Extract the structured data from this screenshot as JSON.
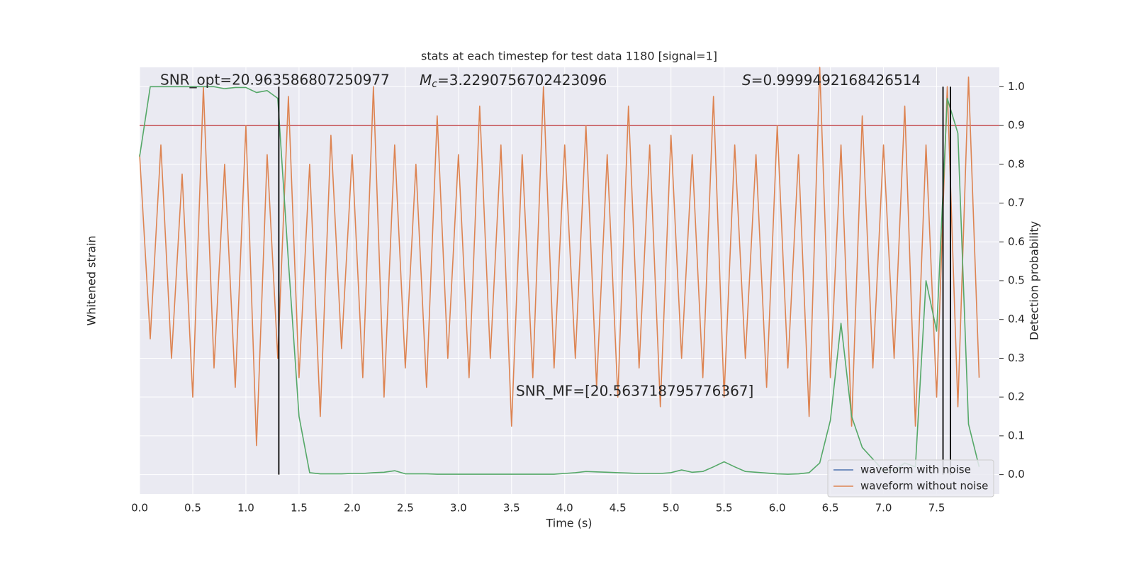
{
  "chart_data": {
    "type": "line",
    "title": "stats at each timestep for test data 1180 [signal=1]",
    "xlabel": "Time (s)",
    "ylabel": "Whitened strain",
    "y2label": "Detection probability",
    "annotations": {
      "snr_opt": "SNR_opt=20.963586807250977",
      "mc_symbol": "M",
      "mc_subscript": "c",
      "mc_value": "=3.2290756702423096",
      "s_symbol": "S",
      "s_value": "=0.9999492168426514",
      "snr_mf": "SNR_MF=[20.563718795776367]"
    },
    "x": [
      0.0,
      0.1,
      0.2,
      0.3,
      0.4,
      0.5,
      0.6,
      0.7,
      0.8,
      0.9,
      1.0,
      1.1,
      1.2,
      1.3,
      1.4,
      1.5,
      1.6,
      1.7,
      1.8,
      1.9,
      2.0,
      2.1,
      2.2,
      2.3,
      2.4,
      2.5,
      2.6,
      2.7,
      2.8,
      2.9,
      3.0,
      3.1,
      3.2,
      3.3,
      3.4,
      3.5,
      3.6,
      3.7,
      3.8,
      3.9,
      4.0,
      4.1,
      4.2,
      4.3,
      4.4,
      4.5,
      4.6,
      4.7,
      4.8,
      4.9,
      5.0,
      5.1,
      5.2,
      5.3,
      5.4,
      5.5,
      5.6,
      5.7,
      5.8,
      5.9,
      6.0,
      6.1,
      6.2,
      6.3,
      6.4,
      6.5,
      6.6,
      6.7,
      6.8,
      6.9,
      7.0,
      7.1,
      7.2,
      7.3,
      7.4,
      7.5,
      7.6,
      7.7,
      7.8,
      7.9
    ],
    "series": [
      {
        "name": "waveform with noise",
        "color": "#4c72b0",
        "axis": "y",
        "values": [
          null,
          null,
          null,
          null,
          null,
          null,
          null,
          null,
          null,
          null,
          null,
          null,
          null,
          null,
          null,
          null,
          null,
          null,
          null,
          null,
          null,
          null,
          null,
          null,
          null,
          null,
          null,
          null,
          null,
          null,
          null,
          null,
          null,
          null,
          null,
          null,
          null,
          null,
          null,
          null,
          null,
          null,
          null,
          null,
          null,
          null,
          null,
          null,
          null,
          null,
          null,
          null,
          null,
          null,
          null,
          null,
          null,
          null,
          null,
          null,
          null,
          null,
          null,
          null,
          null,
          null,
          null,
          null,
          null,
          null,
          null,
          null,
          null,
          null,
          null,
          null,
          null,
          null,
          null,
          null
        ]
      },
      {
        "name": "waveform without noise",
        "color": "#dd8452",
        "axis": "y",
        "values": [
          0.55,
          -0.4,
          0.6,
          -0.5,
          0.45,
          -0.7,
          0.9,
          -0.55,
          0.5,
          -0.65,
          0.7,
          -0.95,
          0.55,
          -0.5,
          0.85,
          -0.6,
          0.5,
          -0.8,
          0.65,
          -0.45,
          0.55,
          -0.6,
          0.9,
          -0.7,
          0.6,
          -0.55,
          0.5,
          -0.65,
          0.75,
          -0.5,
          0.55,
          -0.6,
          0.8,
          -0.5,
          0.6,
          -0.85,
          0.55,
          -0.6,
          0.9,
          -0.55,
          0.6,
          -0.5,
          0.7,
          -0.65,
          0.55,
          -0.7,
          0.8,
          -0.55,
          0.6,
          -0.75,
          0.65,
          -0.5,
          0.55,
          -0.6,
          0.85,
          -0.7,
          0.6,
          -0.5,
          0.55,
          -0.65,
          0.7,
          -0.55,
          0.55,
          -0.8,
          1.0,
          -0.6,
          0.6,
          -0.85,
          0.75,
          -0.55,
          0.6,
          -0.5,
          0.8,
          -0.85,
          0.6,
          -0.7,
          0.9,
          -0.75,
          0.95,
          -0.6
        ]
      },
      {
        "name": "detection probability",
        "color": "#55a868",
        "axis": "y2",
        "values": [
          0.82,
          1.0,
          1.0,
          1.0,
          1.0,
          1.0,
          1.0,
          1.0,
          0.995,
          0.998,
          0.998,
          0.985,
          0.99,
          0.97,
          0.55,
          0.15,
          0.005,
          0.002,
          0.002,
          0.002,
          0.003,
          0.003,
          0.005,
          0.006,
          0.01,
          0.002,
          0.002,
          0.002,
          0.001,
          0.001,
          0.001,
          0.001,
          0.001,
          0.001,
          0.001,
          0.001,
          0.001,
          0.001,
          0.001,
          0.001,
          0.003,
          0.005,
          0.008,
          0.007,
          0.006,
          0.005,
          0.004,
          0.003,
          0.003,
          0.003,
          0.005,
          0.012,
          0.006,
          0.008,
          0.02,
          0.033,
          0.02,
          0.008,
          0.006,
          0.004,
          0.002,
          0.001,
          0.002,
          0.005,
          0.03,
          0.14,
          0.39,
          0.15,
          0.07,
          0.04,
          0.01,
          0.01,
          0.03,
          0.02,
          0.5,
          0.37,
          0.97,
          0.88,
          0.13,
          0.02
        ]
      }
    ],
    "legend_series": [
      0,
      1
    ],
    "threshold": 0.9,
    "threshold_color": "#c44e52",
    "vlines": [
      1.31,
      7.56,
      7.63
    ],
    "vline_color": "#000000",
    "xlim": [
      0,
      8.09
    ],
    "xticks": [
      {
        "value": 0,
        "label": "0.0"
      },
      0.5,
      {
        "value": 1,
        "label": "1.0"
      },
      1.5,
      {
        "value": 2,
        "label": "2.0"
      },
      2.5,
      {
        "value": 3,
        "label": "3.0"
      },
      3.5,
      {
        "value": 4,
        "label": "4.0"
      },
      4.5,
      {
        "value": 5,
        "label": "5.0"
      },
      5.5,
      {
        "value": 6,
        "label": "6.0"
      },
      6.5,
      {
        "value": 7,
        "label": "7.0"
      },
      7.5
    ],
    "ylim": [
      -1.2,
      1.0
    ],
    "y2lim": [
      -0.05,
      1.05
    ],
    "y2ticks": [
      {
        "value": 0,
        "label": "0.0"
      },
      0.1,
      0.2,
      0.3,
      0.4,
      0.5,
      0.6,
      0.7,
      0.8,
      0.9,
      {
        "value": 1,
        "label": "1.0"
      }
    ],
    "grid": true,
    "legend": "lower right"
  }
}
